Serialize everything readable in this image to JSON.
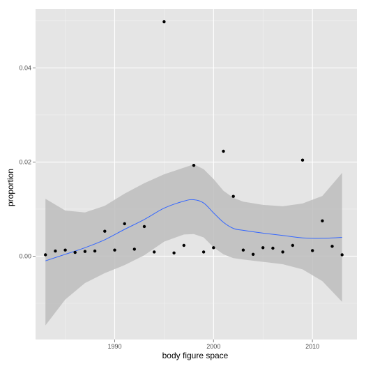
{
  "chart_data": {
    "type": "scatter",
    "title": "",
    "xlabel": "body figure space",
    "ylabel": "proportion",
    "xlim": [
      1982,
      2014.5
    ],
    "ylim": [
      -0.0177,
      0.0525
    ],
    "x_ticks": [
      1990,
      2000,
      2010
    ],
    "x_tick_labels": [
      "1990",
      "2000",
      "2010"
    ],
    "y_ticks": [
      0.0,
      0.02,
      0.04
    ],
    "y_tick_labels": [
      "0.00",
      "0.02",
      "0.04"
    ],
    "grid": true,
    "legend": "none",
    "points": [
      {
        "x": 1983,
        "y": 0.0003
      },
      {
        "x": 1984,
        "y": 0.0011
      },
      {
        "x": 1985,
        "y": 0.0013
      },
      {
        "x": 1986,
        "y": 0.0008
      },
      {
        "x": 1987,
        "y": 0.001
      },
      {
        "x": 1988,
        "y": 0.0011
      },
      {
        "x": 1989,
        "y": 0.0053
      },
      {
        "x": 1990,
        "y": 0.0013
      },
      {
        "x": 1991,
        "y": 0.0069
      },
      {
        "x": 1992,
        "y": 0.0015
      },
      {
        "x": 1993,
        "y": 0.0063
      },
      {
        "x": 1994,
        "y": 0.0009
      },
      {
        "x": 1995,
        "y": 0.0498
      },
      {
        "x": 1996,
        "y": 0.0007
      },
      {
        "x": 1997,
        "y": 0.0023
      },
      {
        "x": 1998,
        "y": 0.0193
      },
      {
        "x": 1999,
        "y": 0.0009
      },
      {
        "x": 2000,
        "y": 0.0018
      },
      {
        "x": 2001,
        "y": 0.0223
      },
      {
        "x": 2002,
        "y": 0.0127
      },
      {
        "x": 2003,
        "y": 0.0013
      },
      {
        "x": 2004,
        "y": 0.0004
      },
      {
        "x": 2005,
        "y": 0.0018
      },
      {
        "x": 2006,
        "y": 0.0017
      },
      {
        "x": 2007,
        "y": 0.0009
      },
      {
        "x": 2008,
        "y": 0.0023
      },
      {
        "x": 2009,
        "y": 0.0204
      },
      {
        "x": 2010,
        "y": 0.0012
      },
      {
        "x": 2011,
        "y": 0.0075
      },
      {
        "x": 2012,
        "y": 0.0021
      },
      {
        "x": 2013,
        "y": 0.0003
      }
    ],
    "smooth": {
      "method": "loess",
      "x": [
        1983,
        1985,
        1987,
        1989,
        1991,
        1993,
        1995,
        1997,
        1998,
        1999,
        2000,
        2001,
        2002,
        2003,
        2005,
        2007,
        2009,
        2011,
        2013
      ],
      "y": [
        -0.001,
        0.0004,
        0.0018,
        0.0035,
        0.0057,
        0.0078,
        0.0102,
        0.0117,
        0.012,
        0.0113,
        0.0092,
        0.0072,
        0.0059,
        0.0055,
        0.0049,
        0.0044,
        0.0039,
        0.0038,
        0.004
      ],
      "lower": [
        -0.0147,
        -0.0092,
        -0.0057,
        -0.0036,
        -0.0019,
        0.0002,
        0.0031,
        0.0046,
        0.0047,
        0.004,
        0.0019,
        0.0004,
        -0.0004,
        -0.0007,
        -0.0012,
        -0.0017,
        -0.0028,
        -0.0053,
        -0.0097
      ],
      "upper": [
        0.0122,
        0.0097,
        0.0093,
        0.0107,
        0.0133,
        0.0155,
        0.0174,
        0.0188,
        0.0195,
        0.0185,
        0.0164,
        0.0139,
        0.0124,
        0.0116,
        0.0109,
        0.0106,
        0.0112,
        0.0128,
        0.0177
      ]
    },
    "colors": {
      "panel": "#e5e5e5",
      "grid_major": "#ffffff",
      "grid_minor": "#f2f2f2",
      "point": "#000000",
      "line": "#3366ff",
      "ribbon": "#bdbdbd",
      "tick": "#7f7f7f"
    }
  }
}
